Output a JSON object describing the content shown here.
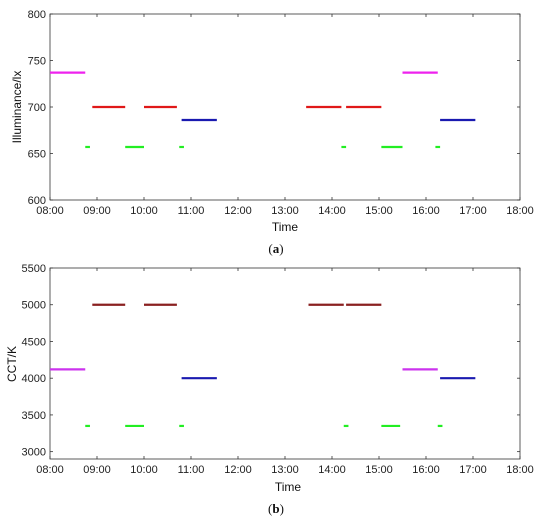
{
  "panels": [
    {
      "id": "a",
      "panel_label": "(a)",
      "panel_label_letter": "a",
      "xlabel": "Time",
      "ylabel": "Illuminance/lx"
    },
    {
      "id": "b",
      "panel_label": "(b)",
      "panel_label_letter": "b",
      "xlabel": "Time",
      "ylabel": "CCT/K"
    }
  ],
  "chart_data": [
    {
      "type": "line",
      "title": "",
      "xlabel": "Time",
      "ylabel": "Illuminance/lx",
      "x_unit": "hours of day",
      "xlim": [
        8,
        18
      ],
      "ylim": [
        600,
        800
      ],
      "x_ticks": [
        8,
        9,
        10,
        11,
        12,
        13,
        14,
        15,
        16,
        17,
        18
      ],
      "x_tick_labels": [
        "08:00",
        "09:00",
        "10:00",
        "11:00",
        "12:00",
        "13:00",
        "14:00",
        "15:00",
        "16:00",
        "17:00",
        "18:00"
      ],
      "y_ticks": [
        600,
        650,
        700,
        750,
        800
      ],
      "y_tick_labels": [
        "600",
        "650",
        "700",
        "750",
        "800"
      ],
      "grid": false,
      "legend": null,
      "segments": [
        {
          "x_start": 8.0,
          "x_end": 8.75,
          "y": 737,
          "color": "#ee22ee"
        },
        {
          "x_start": 8.75,
          "x_end": 8.85,
          "y": 657,
          "color": "#22ee22"
        },
        {
          "x_start": 8.9,
          "x_end": 9.6,
          "y": 700,
          "color": "#e01818"
        },
        {
          "x_start": 9.6,
          "x_end": 10.0,
          "y": 657,
          "color": "#22ee22"
        },
        {
          "x_start": 10.0,
          "x_end": 10.7,
          "y": 700,
          "color": "#e01818"
        },
        {
          "x_start": 10.75,
          "x_end": 10.85,
          "y": 657,
          "color": "#22ee22"
        },
        {
          "x_start": 10.8,
          "x_end": 11.55,
          "y": 686,
          "color": "#1a1ab0"
        },
        {
          "x_start": 13.45,
          "x_end": 14.2,
          "y": 700,
          "color": "#e01818"
        },
        {
          "x_start": 14.2,
          "x_end": 14.3,
          "y": 657,
          "color": "#22ee22"
        },
        {
          "x_start": 14.3,
          "x_end": 15.05,
          "y": 700,
          "color": "#e01818"
        },
        {
          "x_start": 15.05,
          "x_end": 15.5,
          "y": 657,
          "color": "#22ee22"
        },
        {
          "x_start": 15.5,
          "x_end": 16.25,
          "y": 737,
          "color": "#ee22ee"
        },
        {
          "x_start": 16.2,
          "x_end": 16.3,
          "y": 657,
          "color": "#22ee22"
        },
        {
          "x_start": 16.3,
          "x_end": 17.05,
          "y": 686,
          "color": "#1a1ab0"
        }
      ]
    },
    {
      "type": "line",
      "title": "",
      "xlabel": "Time",
      "ylabel": "CCT/K",
      "x_unit": "hours of day",
      "xlim": [
        8,
        18
      ],
      "ylim": [
        2900,
        5500
      ],
      "x_ticks": [
        8,
        9,
        10,
        11,
        12,
        13,
        14,
        15,
        16,
        17,
        18
      ],
      "x_tick_labels": [
        "08:00",
        "09:00",
        "10:00",
        "11:00",
        "12:00",
        "13:00",
        "14:00",
        "15:00",
        "16:00",
        "17:00",
        "18:00"
      ],
      "y_ticks": [
        3000,
        3500,
        4000,
        4500,
        5000,
        5500
      ],
      "y_tick_labels": [
        "3000",
        "3500",
        "4000",
        "4500",
        "5000",
        "5500"
      ],
      "grid": false,
      "legend": null,
      "segments": [
        {
          "x_start": 8.0,
          "x_end": 8.75,
          "y": 4120,
          "color": "#cc33ee"
        },
        {
          "x_start": 8.75,
          "x_end": 8.85,
          "y": 3350,
          "color": "#22ee22"
        },
        {
          "x_start": 8.9,
          "x_end": 9.6,
          "y": 5000,
          "color": "#8a2020"
        },
        {
          "x_start": 9.6,
          "x_end": 10.0,
          "y": 3350,
          "color": "#22ee22"
        },
        {
          "x_start": 10.0,
          "x_end": 10.7,
          "y": 5000,
          "color": "#8a2020"
        },
        {
          "x_start": 10.75,
          "x_end": 10.85,
          "y": 3350,
          "color": "#22ee22"
        },
        {
          "x_start": 10.8,
          "x_end": 11.55,
          "y": 4000,
          "color": "#1a1ab0"
        },
        {
          "x_start": 13.5,
          "x_end": 14.25,
          "y": 5000,
          "color": "#8a2020"
        },
        {
          "x_start": 14.25,
          "x_end": 14.35,
          "y": 3350,
          "color": "#22ee22"
        },
        {
          "x_start": 14.3,
          "x_end": 15.05,
          "y": 5000,
          "color": "#8a2020"
        },
        {
          "x_start": 15.05,
          "x_end": 15.45,
          "y": 3350,
          "color": "#22ee22"
        },
        {
          "x_start": 15.5,
          "x_end": 16.25,
          "y": 4120,
          "color": "#cc33ee"
        },
        {
          "x_start": 16.25,
          "x_end": 16.35,
          "y": 3350,
          "color": "#22ee22"
        },
        {
          "x_start": 16.3,
          "x_end": 17.05,
          "y": 4000,
          "color": "#1a1ab0"
        }
      ]
    }
  ]
}
